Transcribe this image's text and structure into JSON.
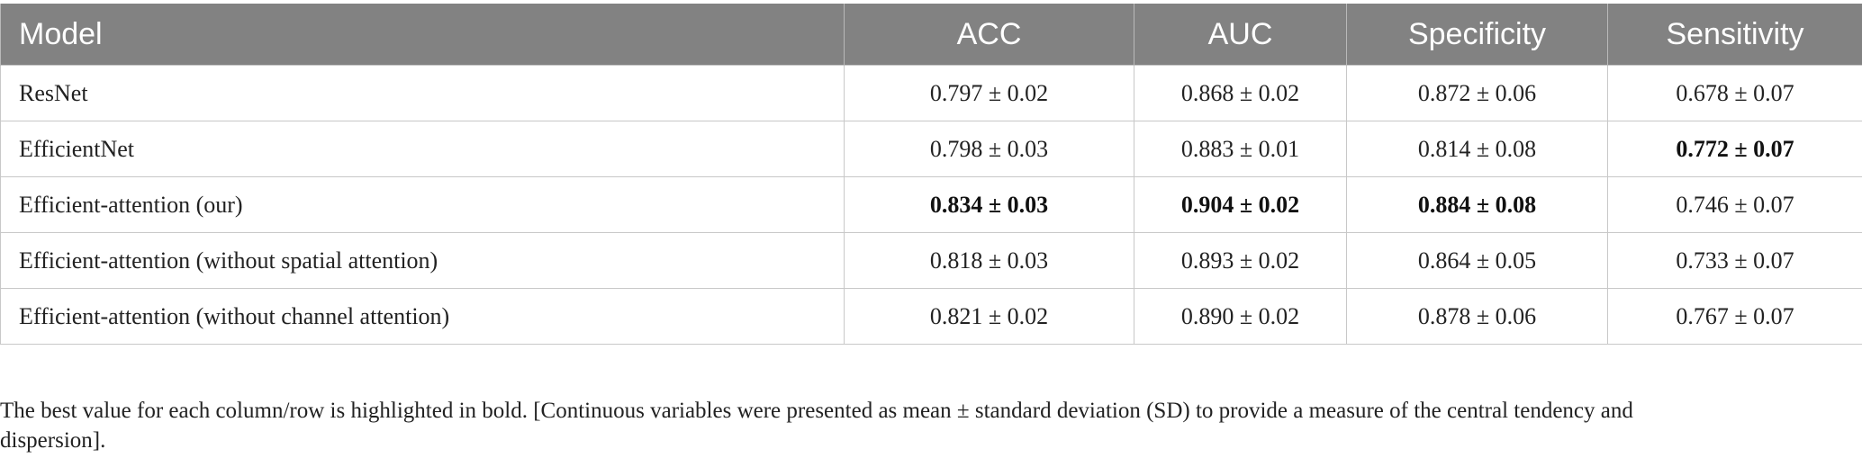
{
  "table": {
    "headers": {
      "model": "Model",
      "acc": "ACC",
      "auc": "AUC",
      "specificity": "Specificity",
      "sensitivity": "Sensitivity"
    },
    "rows": [
      {
        "model": "ResNet",
        "acc": "0.797 ± 0.02",
        "auc": "0.868 ± 0.02",
        "specificity": "0.872 ± 0.06",
        "sensitivity": "0.678 ± 0.07"
      },
      {
        "model": "EfficientNet",
        "acc": "0.798 ± 0.03",
        "auc": "0.883 ± 0.01",
        "specificity": "0.814 ± 0.08",
        "sensitivity": "0.772 ± 0.07"
      },
      {
        "model": "Efficient-attention (our)",
        "acc": "0.834 ± 0.03",
        "auc": "0.904 ± 0.02",
        "specificity": "0.884 ± 0.08",
        "sensitivity": "0.746 ± 0.07"
      },
      {
        "model": "Efficient-attention (without spatial attention)",
        "acc": "0.818 ± 0.03",
        "auc": "0.893 ± 0.02",
        "specificity": "0.864 ± 0.05",
        "sensitivity": "0.733 ± 0.07"
      },
      {
        "model": "Efficient-attention (without channel attention)",
        "acc": "0.821 ± 0.02",
        "auc": "0.890 ± 0.02",
        "specificity": "0.878 ± 0.06",
        "sensitivity": "0.767 ± 0.07"
      }
    ]
  },
  "footnote": {
    "line1": "The best value for each column/row is highlighted in bold. [Continuous variables were presented as mean ± standard deviation (SD) to provide a measure of the central tendency and",
    "line2": "dispersion]."
  },
  "colors": {
    "header_background": "#828282",
    "header_text": "#ffffff",
    "grid_lines": "#c8c8c8"
  }
}
